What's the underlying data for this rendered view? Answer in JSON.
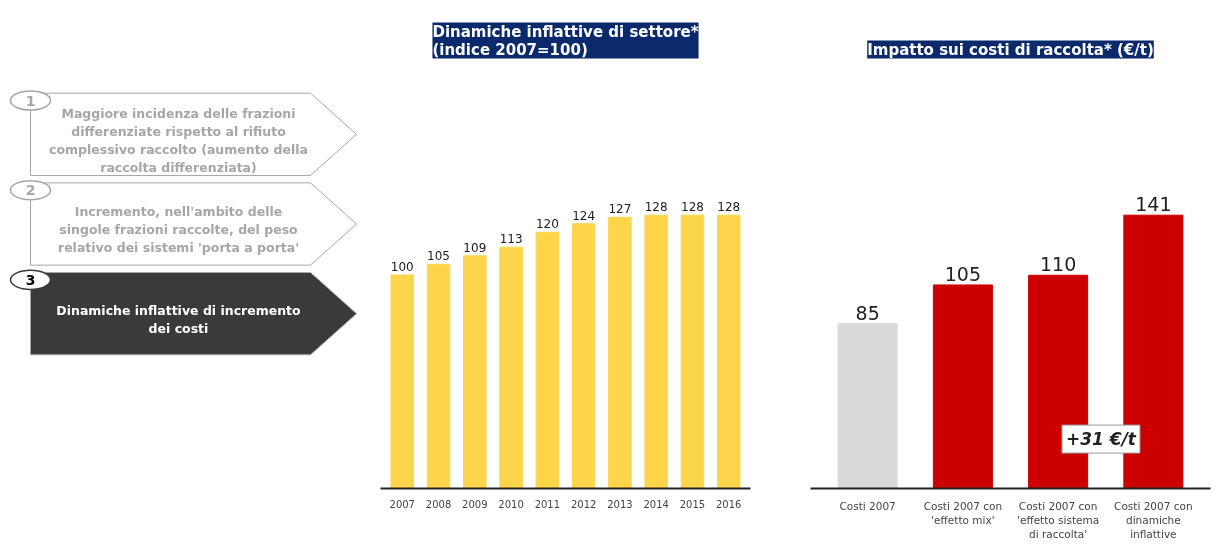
{
  "chart_data": [
    {
      "type": "other",
      "annotations": [
        "1",
        "Maggiore incidenza delle frazioni differenziate rispetto al rifiuto complessivo raccolto (aumento della raccolta differenziata)",
        "2",
        "Incremento, nell'ambito delle singole frazioni raccolte, del peso relativo dei sistemi 'porta a porta'",
        "3",
        "Dinamiche inflattive di incremento dei costi"
      ]
    },
    {
      "type": "bar",
      "title": "Dinamiche inflattive di settore*\n(indice 2007=100)",
      "categories": [
        "2007",
        "2008",
        "2009",
        "2010",
        "2011",
        "2012",
        "2013",
        "2014",
        "2015",
        "2016"
      ],
      "values": [
        100,
        105,
        109,
        113,
        120,
        124,
        127,
        128,
        128,
        128
      ],
      "color": "#fcd54b",
      "data_labels": true
    },
    {
      "type": "bar",
      "title": "Impatto sui costi di raccolta* (€/t)",
      "categories": [
        "Costi 2007",
        "Costi 2007 con 'effetto mix'",
        "Costi 2007 con 'effetto sistema di raccolta'",
        "Costi 2007 con dinamiche inflattive"
      ],
      "values": [
        85,
        105,
        110,
        141
      ],
      "colors": [
        "#d9d9d9",
        "#cc0000",
        "#cc0000",
        "#cc0000"
      ],
      "data_labels": true,
      "annotations": [
        "+31 €/t"
      ]
    }
  ]
}
